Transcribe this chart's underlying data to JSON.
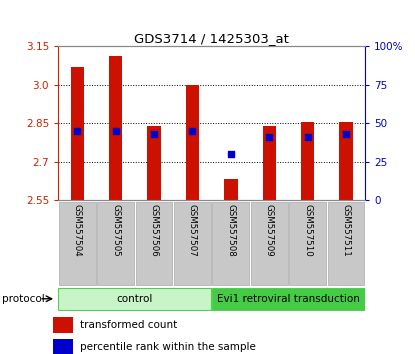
{
  "title": "GDS3714 / 1425303_at",
  "samples": [
    "GSM557504",
    "GSM557505",
    "GSM557506",
    "GSM557507",
    "GSM557508",
    "GSM557509",
    "GSM557510",
    "GSM557511"
  ],
  "red_values": [
    3.07,
    3.11,
    2.84,
    3.0,
    2.63,
    2.84,
    2.855,
    2.855
  ],
  "percentile_ranks": [
    45,
    45,
    43,
    45,
    30,
    41,
    41,
    43
  ],
  "ylim_left": [
    2.55,
    3.15
  ],
  "yticks_left": [
    2.55,
    2.7,
    2.85,
    3.0,
    3.15
  ],
  "yticks_right": [
    0,
    25,
    50,
    75,
    100
  ],
  "ylim_right": [
    0,
    100
  ],
  "groups": [
    {
      "label": "control",
      "start": 0,
      "end": 4,
      "color": "#c8f5c8",
      "edgecolor": "#55cc55"
    },
    {
      "label": "Evi1 retroviral transduction",
      "start": 4,
      "end": 8,
      "color": "#44cc44",
      "edgecolor": "#55cc55"
    }
  ],
  "protocol_label": "protocol",
  "bar_color": "#cc1100",
  "dot_color": "#0000cc",
  "bar_width": 0.35,
  "left_tick_color": "#cc2200",
  "right_tick_color": "#0000cc",
  "legend_red": "transformed count",
  "legend_blue": "percentile rank within the sample",
  "grid_yticks": [
    3.0,
    2.85,
    2.7
  ],
  "xticklabel_bg": "#c8c8c8",
  "xticklabel_edge": "#aaaaaa"
}
